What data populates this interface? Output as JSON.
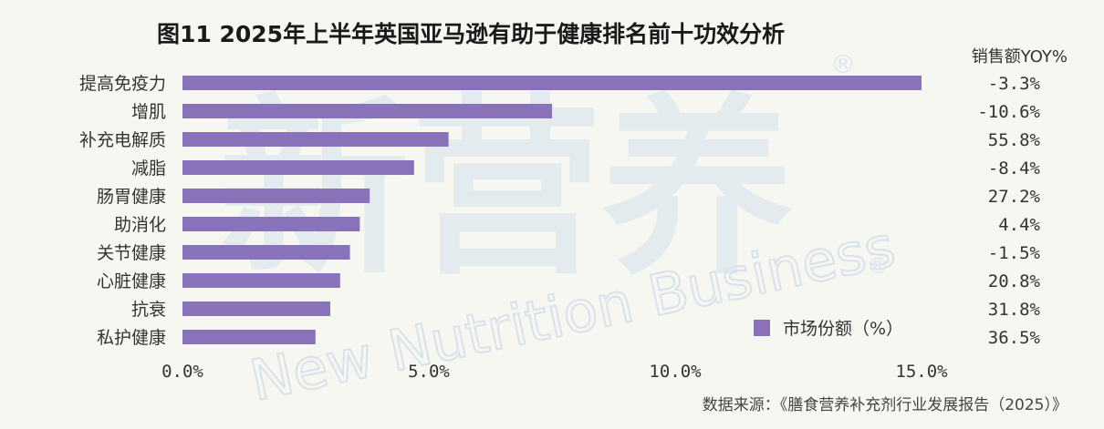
{
  "title": "图11 2025年上半年英国亚马逊有助于健康排名前十功效分析",
  "yoy_header": "销售额YOY%",
  "source": "数据来源：《膳食营养补充剂行业发展报告（2025）》",
  "watermark": {
    "cn": "新营养",
    "en": "New Nutrition Business",
    "mark": "®"
  },
  "colors": {
    "bar": "#8a72bb",
    "text": "#333333",
    "watermark": "#dde6ee"
  },
  "chart_data": {
    "type": "bar",
    "orientation": "horizontal",
    "categories": [
      "提高免疫力",
      "增肌",
      "补充电解质",
      "减脂",
      "肠胃健康",
      "助消化",
      "关节健康",
      "心脏健康",
      "抗衰",
      "私护健康"
    ],
    "series": [
      {
        "name": "市场份额（%）",
        "values": [
          15.0,
          7.5,
          5.4,
          4.7,
          3.8,
          3.6,
          3.4,
          3.2,
          3.0,
          2.7
        ]
      }
    ],
    "yoy": [
      "-3.3%",
      "-10.6%",
      "55.8%",
      "-8.4%",
      "27.2%",
      "4.4%",
      "-1.5%",
      "20.8%",
      "31.8%",
      "36.5%"
    ],
    "xlim": [
      0,
      15
    ],
    "xticks": [
      "0.0%",
      "5.0%",
      "10.0%",
      "15.0%"
    ],
    "xtick_values": [
      0,
      5,
      10,
      15
    ],
    "legend_position": "bottom-right"
  }
}
